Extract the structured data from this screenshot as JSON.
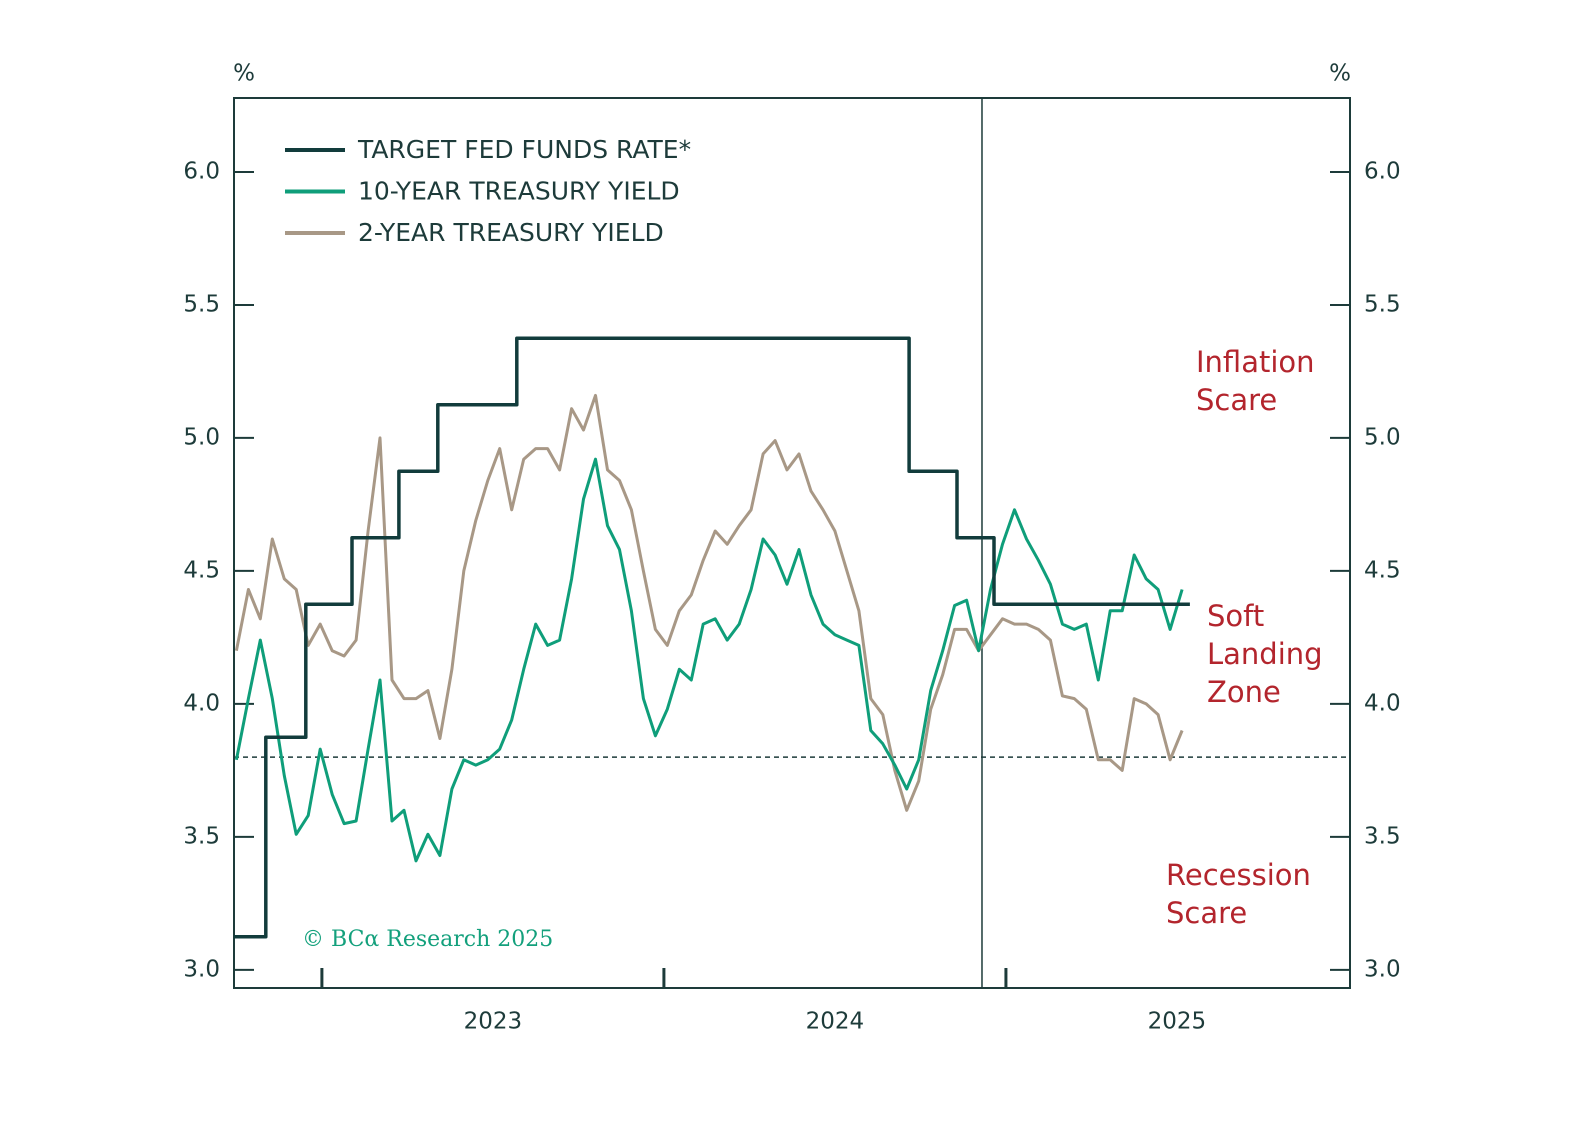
{
  "chart_data": {
    "type": "line",
    "y_unit": "%",
    "y2_unit": "%",
    "ylim": [
      2.932,
      6.278
    ],
    "yticks": [
      {
        "value": 3,
        "label": "3.0"
      },
      3.5,
      {
        "value": 4,
        "label": "4.0"
      },
      4.5,
      {
        "value": 5,
        "label": "5.0"
      },
      5.5,
      {
        "value": 6,
        "label": "6.0"
      }
    ],
    "y2lim": [
      2.932,
      6.278
    ],
    "y2ticks": [
      {
        "value": 3,
        "label": "3.0"
      },
      3.5,
      {
        "value": 4,
        "label": "4.0"
      },
      4.5,
      {
        "value": 5,
        "label": "5.0"
      },
      5.5,
      {
        "value": 6,
        "label": "6.0"
      }
    ],
    "xlim": [
      2022.743,
      2026.006
    ],
    "xticks": [
      2023,
      2024,
      2025
    ],
    "hline": 3.8,
    "vline": 2024.93,
    "x": [
      2022.75,
      2022.785,
      2022.82,
      2022.855,
      2022.89,
      2022.925,
      2022.96,
      2022.995,
      2023.03,
      2023.065,
      2023.1,
      2023.135,
      2023.17,
      2023.205,
      2023.24,
      2023.275,
      2023.31,
      2023.345,
      2023.38,
      2023.415,
      2023.45,
      2023.485,
      2023.52,
      2023.555,
      2023.59,
      2023.625,
      2023.66,
      2023.695,
      2023.73,
      2023.765,
      2023.8,
      2023.835,
      2023.87,
      2023.905,
      2023.94,
      2023.975,
      2024.01,
      2024.045,
      2024.08,
      2024.115,
      2024.15,
      2024.185,
      2024.22,
      2024.255,
      2024.29,
      2024.325,
      2024.36,
      2024.395,
      2024.43,
      2024.465,
      2024.5,
      2024.535,
      2024.57,
      2024.605,
      2024.64,
      2024.675,
      2024.71,
      2024.745,
      2024.78,
      2024.815,
      2024.85,
      2024.885,
      2024.92,
      2024.955,
      2024.99,
      2025.025,
      2025.06,
      2025.095,
      2025.13,
      2025.165,
      2025.2,
      2025.235,
      2025.27,
      2025.305,
      2025.34,
      2025.375,
      2025.41,
      2025.445,
      2025.48,
      2025.515
    ],
    "series": [
      {
        "name": "TARGET FED FUNDS RATE*",
        "color": "#123c3c",
        "x": [
          2022.743,
          2022.836,
          2022.836,
          2022.953,
          2022.953,
          2023.088,
          2023.088,
          2023.225,
          2023.225,
          2023.339,
          2023.339,
          2023.57,
          2023.57,
          2024.717,
          2024.717,
          2024.857,
          2024.857,
          2024.965,
          2024.965,
          2025.538
        ],
        "values": [
          3.125,
          3.125,
          3.875,
          3.875,
          4.375,
          4.375,
          4.625,
          4.625,
          4.875,
          4.875,
          5.125,
          5.125,
          5.375,
          5.375,
          4.875,
          4.875,
          4.625,
          4.625,
          4.375,
          4.375
        ]
      },
      {
        "name": "10-YEAR TREASURY YIELD",
        "color": "#0f9e7a",
        "values": [
          3.79,
          4.02,
          4.24,
          4.02,
          3.73,
          3.51,
          3.58,
          3.83,
          3.66,
          3.55,
          3.56,
          3.83,
          4.09,
          3.56,
          3.6,
          3.41,
          3.51,
          3.43,
          3.68,
          3.79,
          3.77,
          3.79,
          3.83,
          3.94,
          4.13,
          4.3,
          4.22,
          4.24,
          4.47,
          4.77,
          4.92,
          4.67,
          4.58,
          4.35,
          4.02,
          3.88,
          3.98,
          4.13,
          4.09,
          4.3,
          4.32,
          4.24,
          4.3,
          4.43,
          4.62,
          4.56,
          4.45,
          4.58,
          4.41,
          4.3,
          4.26,
          4.24,
          4.22,
          3.9,
          3.85,
          3.77,
          3.68,
          3.79,
          4.05,
          4.2,
          4.37,
          4.39,
          4.2,
          4.43,
          4.6,
          4.73,
          4.62,
          4.54,
          4.45,
          4.3,
          4.28,
          4.3,
          4.09,
          4.35,
          4.35,
          4.56,
          4.47,
          4.43,
          4.28,
          4.43
        ]
      },
      {
        "name": "2-YEAR TREASURY YIELD",
        "color": "#a89886",
        "values": [
          4.2,
          4.43,
          4.32,
          4.62,
          4.47,
          4.43,
          4.22,
          4.3,
          4.2,
          4.18,
          4.24,
          4.65,
          5.0,
          4.09,
          4.02,
          4.02,
          4.05,
          3.87,
          4.13,
          4.5,
          4.69,
          4.84,
          4.96,
          4.73,
          4.92,
          4.96,
          4.96,
          4.88,
          5.11,
          5.03,
          5.16,
          4.88,
          4.84,
          4.73,
          4.5,
          4.28,
          4.22,
          4.35,
          4.41,
          4.54,
          4.65,
          4.6,
          4.67,
          4.73,
          4.94,
          4.99,
          4.88,
          4.94,
          4.8,
          4.73,
          4.65,
          4.5,
          4.35,
          4.02,
          3.96,
          3.75,
          3.6,
          3.71,
          3.98,
          4.11,
          4.28,
          4.28,
          4.2,
          4.26,
          4.32,
          4.3,
          4.3,
          4.28,
          4.24,
          4.03,
          4.02,
          3.98,
          3.79,
          3.79,
          3.75,
          4.02,
          4.0,
          3.96,
          3.79,
          3.9
        ]
      }
    ],
    "annotations": [
      {
        "lines": [
          "Inflation",
          "Scare"
        ],
        "color": "#b3252d"
      },
      {
        "lines": [
          "Soft",
          "Landing",
          "Zone"
        ],
        "color": "#b3252d"
      },
      {
        "lines": [
          "Recession",
          "Scare"
        ],
        "color": "#b3252d"
      }
    ],
    "source": "© BCα Research 2025"
  }
}
